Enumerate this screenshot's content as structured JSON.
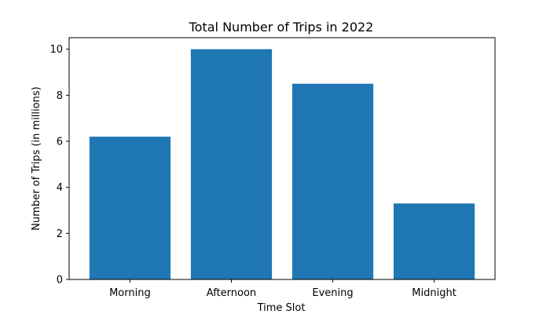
{
  "chart_data": {
    "type": "bar",
    "title": "Total Number of Trips in 2022",
    "xlabel": "Time Slot",
    "ylabel": "Number of Trips (in millions)",
    "categories": [
      "Morning",
      "Afternoon",
      "Evening",
      "Midnight"
    ],
    "values": [
      6.2,
      10.0,
      8.5,
      3.3
    ],
    "ylim": [
      0,
      10.5
    ],
    "yticks": [
      0,
      2,
      4,
      6,
      8,
      10
    ],
    "grid": false,
    "bar_color": "#1f77b4"
  }
}
